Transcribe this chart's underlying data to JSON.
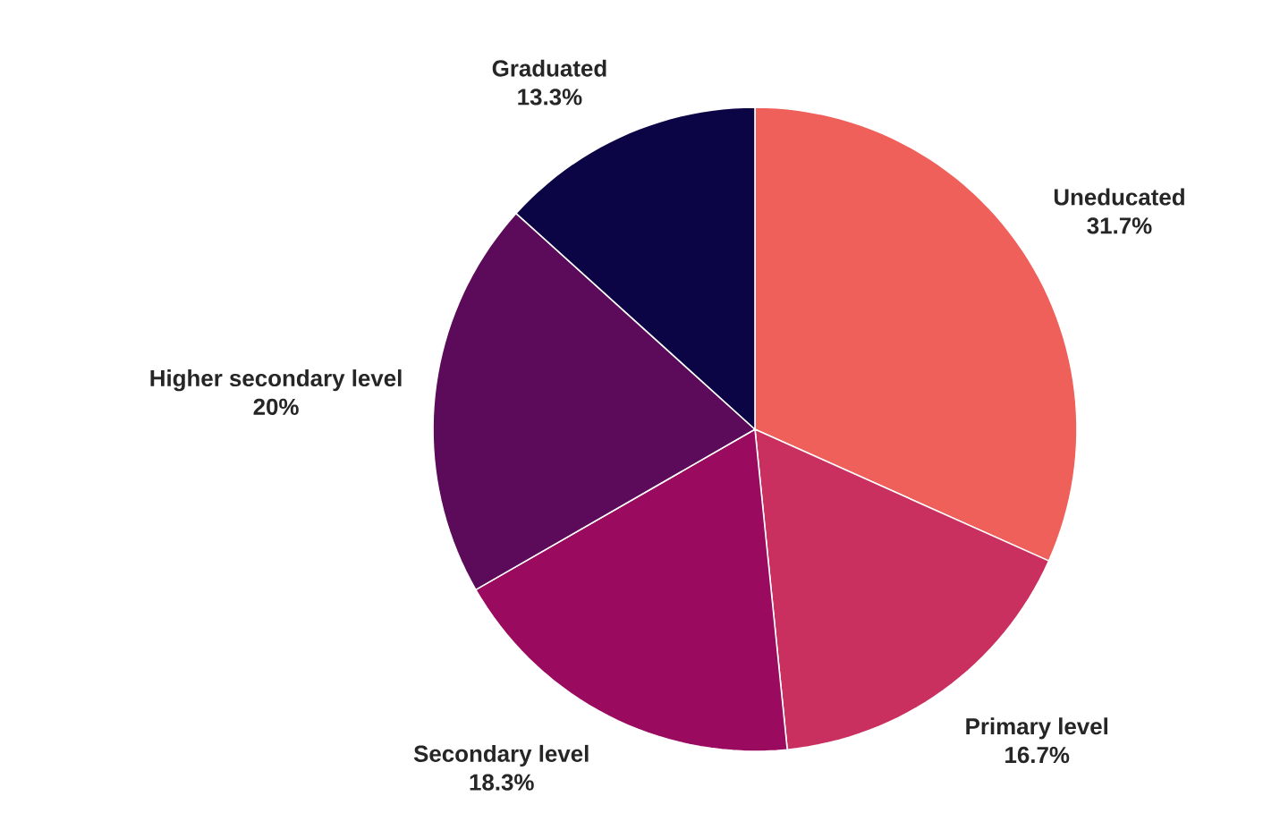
{
  "chart_data": {
    "type": "pie",
    "categories": [
      "Uneducated",
      "Primary level",
      "Secondary level",
      "Higher secondary level",
      "Graduated"
    ],
    "values": [
      31.7,
      16.7,
      18.3,
      20,
      13.3
    ],
    "value_labels": [
      "31.7%",
      "16.7%",
      "18.3%",
      "20%",
      "13.3%"
    ],
    "colors": [
      "#f0605a",
      "#c9305f",
      "#9a0a5f",
      "#5c0a5a",
      "#0c0545"
    ]
  }
}
